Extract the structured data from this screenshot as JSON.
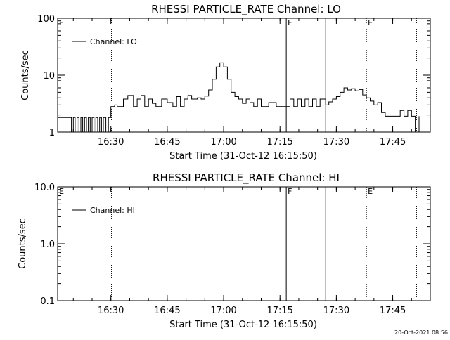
{
  "stamp": "20-Oct-2021 08:56",
  "chart_data": [
    {
      "type": "line",
      "title": "RHESSI PARTICLE_RATE Channel: LO",
      "xlabel": "Start Time (31-Oct-12 16:15:50)",
      "ylabel": "Counts/sec",
      "yscale": "log",
      "ylim": [
        1,
        100
      ],
      "y_ticks": [
        "1",
        "10",
        "100"
      ],
      "xlim": [
        "16:15:50",
        "17:55:00"
      ],
      "x_ticks": [
        "16:30",
        "16:45",
        "17:00",
        "17:15",
        "17:30",
        "17:45"
      ],
      "grid": false,
      "legend": {
        "position": "top-left",
        "label": "Channel: LO"
      },
      "markers": [
        {
          "time": "16:15:50",
          "style": "none",
          "label": "E"
        },
        {
          "time": "16:30:10",
          "style": "dotted",
          "label": ""
        },
        {
          "time": "17:16:40",
          "style": "solid",
          "label": "F"
        },
        {
          "time": "17:27:10",
          "style": "solid",
          "label": ""
        },
        {
          "time": "17:38:00",
          "style": "dotted",
          "label": "E"
        },
        {
          "time": "17:51:20",
          "style": "dotted",
          "label": ""
        }
      ],
      "series": [
        {
          "name": "Channel: LO",
          "x": [
            "16:15:50",
            "16:18:30",
            "16:19:30",
            "16:20:00",
            "16:20:30",
            "16:21:00",
            "16:21:30",
            "16:22:00",
            "16:22:30",
            "16:23:00",
            "16:23:30",
            "16:24:00",
            "16:24:30",
            "16:25:00",
            "16:25:30",
            "16:26:00",
            "16:26:30",
            "16:27:00",
            "16:27:30",
            "16:28:00",
            "16:28:40",
            "16:29:20",
            "16:30:00",
            "16:31:00",
            "16:31:40",
            "16:33:20",
            "16:34:30",
            "16:36:00",
            "16:37:00",
            "16:38:00",
            "16:39:00",
            "16:40:00",
            "16:41:00",
            "16:42:00",
            "16:43:30",
            "16:45:00",
            "16:46:30",
            "16:47:30",
            "16:48:30",
            "16:49:30",
            "16:50:30",
            "16:51:30",
            "16:53:00",
            "16:54:00",
            "16:55:00",
            "16:56:00",
            "16:57:00",
            "16:58:00",
            "16:59:00",
            "17:00:00",
            "17:01:00",
            "17:02:00",
            "17:03:00",
            "17:04:00",
            "17:05:00",
            "17:06:00",
            "17:07:00",
            "17:08:00",
            "17:09:00",
            "17:10:00",
            "17:12:00",
            "17:14:00",
            "17:16:40",
            "17:17:40",
            "17:18:40",
            "17:19:40",
            "17:20:40",
            "17:21:40",
            "17:22:40",
            "17:23:40",
            "17:24:40",
            "17:25:40",
            "17:27:10",
            "17:28:00",
            "17:29:00",
            "17:30:00",
            "17:31:00",
            "17:32:00",
            "17:33:00",
            "17:34:00",
            "17:35:00",
            "17:36:00",
            "17:37:00",
            "17:38:00",
            "17:39:00",
            "17:40:00",
            "17:41:00",
            "17:42:00",
            "17:43:00",
            "17:45:00",
            "17:46:00",
            "17:47:00",
            "17:48:00",
            "17:49:00",
            "17:50:00",
            "17:51:00",
            "17:52:00"
          ],
          "values": [
            1.8,
            1.8,
            1,
            1.8,
            1,
            1.8,
            1,
            1.8,
            1,
            1.8,
            1,
            1.8,
            1,
            1.8,
            1,
            1.8,
            1,
            1.8,
            1,
            1.8,
            1,
            1.8,
            2.8,
            3,
            2.8,
            3.8,
            4.4,
            2.8,
            3.8,
            4.4,
            2.8,
            3.8,
            3.2,
            2.8,
            3.8,
            3.3,
            2.8,
            4.2,
            2.8,
            3.8,
            4.4,
            3.8,
            4,
            3.8,
            4.3,
            5.5,
            8.5,
            14,
            16.5,
            14,
            8.5,
            5,
            4.2,
            3.8,
            3.2,
            3.8,
            3.3,
            2.8,
            3.8,
            2.8,
            3.3,
            2.8,
            2.8,
            3.8,
            2.8,
            3.8,
            2.8,
            3.8,
            2.8,
            3.8,
            2.8,
            3.8,
            3,
            3.4,
            3.8,
            4.2,
            5,
            6,
            5.5,
            5.8,
            5.3,
            5.6,
            4.5,
            4,
            3.5,
            3,
            3.3,
            2.2,
            1.9,
            1.9,
            1.9,
            2.4,
            1.9,
            2.4,
            1.9,
            1,
            1.9
          ]
        }
      ]
    },
    {
      "type": "line",
      "title": "RHESSI PARTICLE_RATE Channel: HI",
      "xlabel": "Start Time (31-Oct-12 16:15:50)",
      "ylabel": "Counts/sec",
      "yscale": "log",
      "ylim": [
        0.1,
        10
      ],
      "y_ticks": [
        "0.1",
        "1.0",
        "10.0"
      ],
      "xlim": [
        "16:15:50",
        "17:55:00"
      ],
      "x_ticks": [
        "16:30",
        "16:45",
        "17:00",
        "17:15",
        "17:30",
        "17:45"
      ],
      "grid": false,
      "legend": {
        "position": "top-left",
        "label": "Channel: HI"
      },
      "markers": [
        {
          "time": "16:15:50",
          "style": "none",
          "label": "E"
        },
        {
          "time": "16:30:10",
          "style": "dotted",
          "label": ""
        },
        {
          "time": "17:16:40",
          "style": "solid",
          "label": "F"
        },
        {
          "time": "17:27:10",
          "style": "solid",
          "label": ""
        },
        {
          "time": "17:38:00",
          "style": "dotted",
          "label": "E"
        },
        {
          "time": "17:51:20",
          "style": "dotted",
          "label": ""
        }
      ],
      "series": [
        {
          "name": "Channel: HI",
          "x": [],
          "values": []
        }
      ]
    }
  ]
}
